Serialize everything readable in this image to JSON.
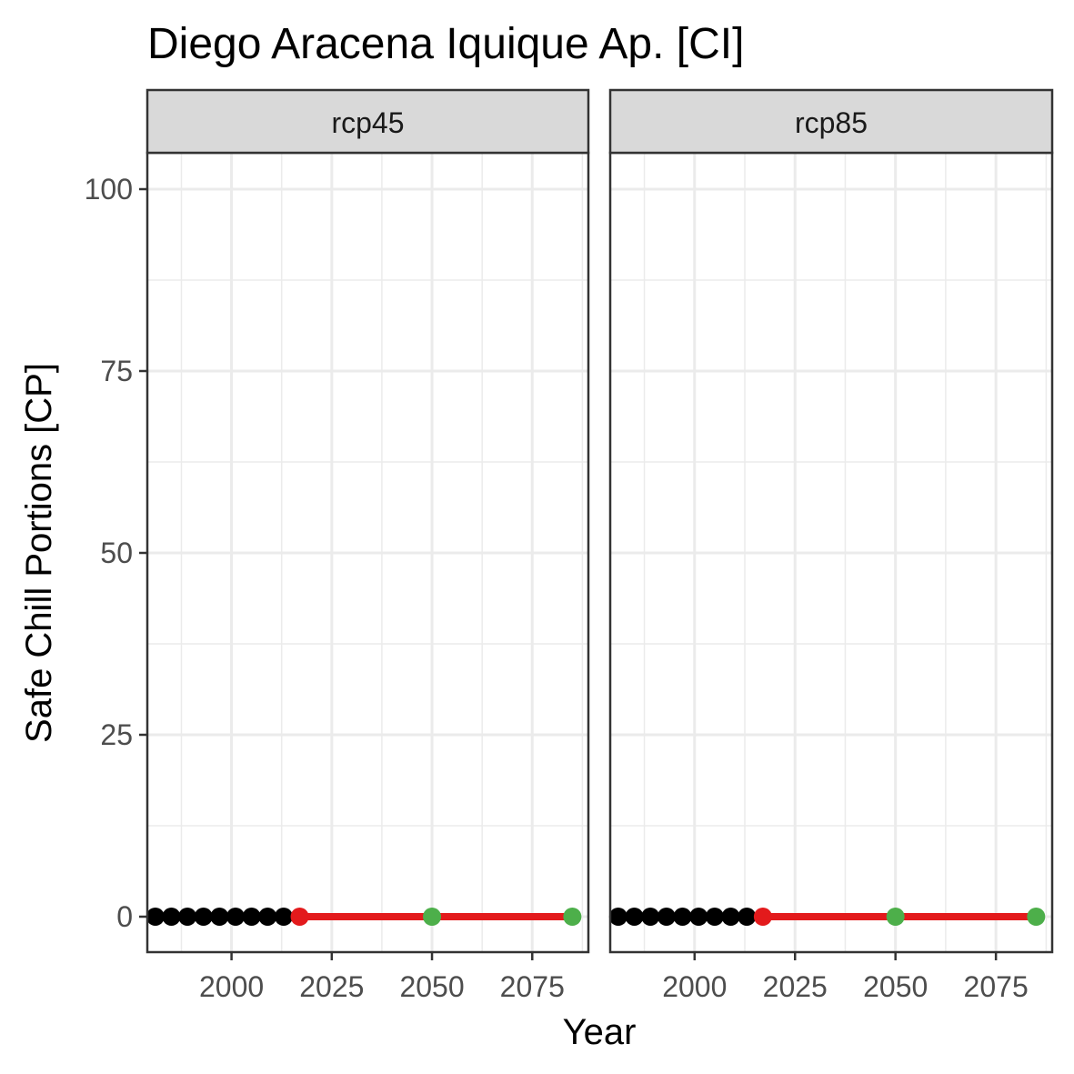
{
  "chart_data": {
    "type": "scatter",
    "title": "Diego Aracena Iquique Ap. [CI]",
    "xlabel": "Year",
    "ylabel": "Safe Chill Portions [CP]",
    "xlim": [
      1979,
      2089
    ],
    "ylim": [
      -5,
      105
    ],
    "x_ticks": [
      2000,
      2025,
      2050,
      2075
    ],
    "x_tick_labels": [
      "2000",
      "2025",
      "2050",
      "2075"
    ],
    "y_ticks": [
      0,
      25,
      50,
      75,
      100
    ],
    "y_tick_labels": [
      "0",
      "25",
      "50",
      "75",
      "100"
    ],
    "grid": true,
    "colors": {
      "historic": "#000000",
      "baseline": "#e31a1c",
      "future": "#4daf4a",
      "strip_fill": "#d9d9d9",
      "grid": "#ebebeb",
      "panel_border": "#333333"
    },
    "facets": [
      {
        "strip": "rcp45",
        "historic": {
          "x": [
            1981,
            1985,
            1989,
            1993,
            1997,
            2001,
            2005,
            2009,
            2013
          ],
          "y": [
            0,
            0,
            0,
            0,
            0,
            0,
            0,
            0,
            0
          ]
        },
        "baseline": {
          "x": [
            2017
          ],
          "y": [
            0
          ]
        },
        "future": {
          "x": [
            2050,
            2085
          ],
          "y": [
            0,
            0
          ]
        },
        "trend_line": {
          "x": [
            2017,
            2085
          ],
          "y": [
            0,
            0
          ]
        }
      },
      {
        "strip": "rcp85",
        "historic": {
          "x": [
            1981,
            1985,
            1989,
            1993,
            1997,
            2001,
            2005,
            2009,
            2013
          ],
          "y": [
            0,
            0,
            0,
            0,
            0,
            0,
            0,
            0,
            0
          ]
        },
        "baseline": {
          "x": [
            2017
          ],
          "y": [
            0
          ]
        },
        "future": {
          "x": [
            2050,
            2085
          ],
          "y": [
            0,
            0
          ]
        },
        "trend_line": {
          "x": [
            2017,
            2085
          ],
          "y": [
            0,
            0
          ]
        }
      }
    ]
  }
}
